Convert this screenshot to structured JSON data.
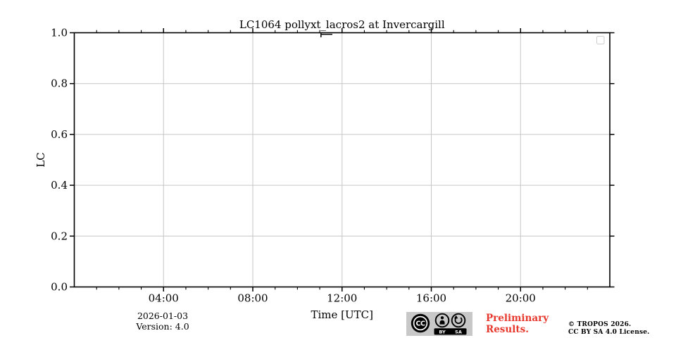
{
  "chart_data": {
    "type": "line",
    "title": "LC1064 pollyxt_lacros2 at Invercargill",
    "xlabel": "Time [UTC]",
    "ylabel": "LC",
    "x_axis": {
      "range_hours": [
        0,
        24
      ],
      "major_ticks": [
        {
          "hour": 4,
          "label": "04:00"
        },
        {
          "hour": 8,
          "label": "08:00"
        },
        {
          "hour": 12,
          "label": "12:00"
        },
        {
          "hour": 16,
          "label": "16:00"
        },
        {
          "hour": 20,
          "label": "20:00"
        }
      ],
      "minor_tick_interval_hours": 1
    },
    "y_axis": {
      "range": [
        0.0,
        1.0
      ],
      "major_ticks": [
        {
          "value": 0.0,
          "label": "0.0"
        },
        {
          "value": 0.2,
          "label": "0.2"
        },
        {
          "value": 0.4,
          "label": "0.4"
        },
        {
          "value": 0.6,
          "label": "0.6"
        },
        {
          "value": 0.8,
          "label": "0.8"
        },
        {
          "value": 1.0,
          "label": "1.0"
        }
      ]
    },
    "grid": true,
    "legend": {
      "visible": true,
      "position": "upper right",
      "entries": []
    },
    "series": []
  },
  "footer": {
    "date": "2026-01-03",
    "version": "Version: 4.0",
    "preliminary": {
      "line1": "Preliminary",
      "line2": "Results."
    },
    "copyright": {
      "line1": "© TROPOS 2026.",
      "line2": "CC BY SA 4.0 License."
    },
    "badge": {
      "cc": "CC",
      "by": "BY",
      "sa": "SA"
    }
  },
  "colors": {
    "background": "#ffffff",
    "axis": "#000000",
    "grid": "#c6c6c6",
    "legend_border": "#cccccc",
    "preliminary_red": "#e8392f",
    "badge_plate": "#c8c8c8",
    "badge_black": "#000000"
  }
}
